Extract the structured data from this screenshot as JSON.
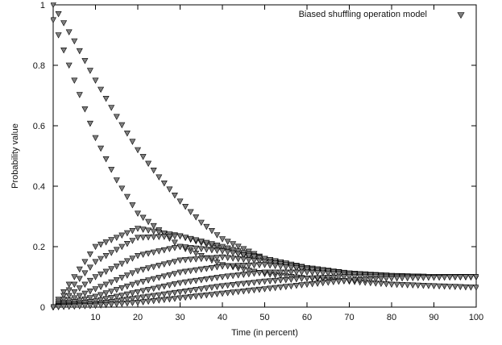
{
  "chart_data": {
    "type": "scatter",
    "title": "",
    "xlabel": "Time (in percent)",
    "ylabel": "Probability value",
    "xlim": [
      0,
      100
    ],
    "ylim": [
      0,
      1
    ],
    "x_ticks": [
      10,
      20,
      30,
      40,
      50,
      60,
      70,
      80,
      90,
      100
    ],
    "y_ticks": [
      0,
      0.2,
      0.4,
      0.6,
      0.8,
      1
    ],
    "grid": false,
    "legend_position": "top-right",
    "marker": "downward-triangle",
    "marker_color": "#7f7f7f",
    "steps": 81,
    "series": [
      {
        "name": "Biased shuffling operation model",
        "curves": [
          {
            "x": [
              0,
              5,
              10,
              15,
              20,
              25,
              30,
              35,
              40,
              50,
              60,
              70,
              80,
              90,
              100
            ],
            "y": [
              1,
              0.88,
              0.75,
              0.63,
              0.52,
              0.43,
              0.35,
              0.28,
              0.225,
              0.16,
              0.125,
              0.11,
              0.102,
              0.1,
              0.1
            ]
          },
          {
            "x": [
              0,
              5,
              10,
              15,
              20,
              30,
              40,
              50,
              60,
              70,
              80,
              90,
              100
            ],
            "y": [
              0.95,
              0.75,
              0.56,
              0.42,
              0.31,
              0.2,
              0.14,
              0.11,
              0.095,
              0.085,
              0.075,
              0.07,
              0.065
            ]
          },
          {
            "x": [
              0,
              10,
              20,
              30,
              40,
              50,
              60,
              70,
              80,
              90,
              100
            ],
            "y": [
              0,
              0.2,
              0.26,
              0.235,
              0.19,
              0.15,
              0.12,
              0.105,
              0.1,
              0.1,
              0.1
            ]
          },
          {
            "x": [
              0,
              10,
              20,
              30,
              40,
              50,
              60,
              70,
              80,
              90,
              100
            ],
            "y": [
              0,
              0.15,
              0.23,
              0.235,
              0.2,
              0.16,
              0.125,
              0.11,
              0.1,
              0.1,
              0.1
            ]
          },
          {
            "x": [
              0,
              10,
              20,
              30,
              40,
              50,
              60,
              70,
              80,
              90,
              100
            ],
            "y": [
              0,
              0.1,
              0.17,
              0.2,
              0.185,
              0.16,
              0.13,
              0.11,
              0.1,
              0.1,
              0.1
            ]
          },
          {
            "x": [
              0,
              10,
              20,
              30,
              40,
              50,
              60,
              70,
              80,
              90,
              100
            ],
            "y": [
              0,
              0.06,
              0.12,
              0.155,
              0.165,
              0.15,
              0.13,
              0.112,
              0.102,
              0.1,
              0.1
            ]
          },
          {
            "x": [
              0,
              10,
              20,
              30,
              40,
              50,
              60,
              70,
              80,
              90,
              100
            ],
            "y": [
              0,
              0.035,
              0.08,
              0.115,
              0.135,
              0.14,
              0.125,
              0.112,
              0.104,
              0.1,
              0.1
            ]
          },
          {
            "x": [
              0,
              10,
              20,
              30,
              40,
              50,
              60,
              70,
              80,
              90,
              100
            ],
            "y": [
              0,
              0.02,
              0.05,
              0.08,
              0.1,
              0.115,
              0.115,
              0.108,
              0.103,
              0.1,
              0.1
            ]
          },
          {
            "x": [
              0,
              10,
              20,
              30,
              40,
              50,
              60,
              70,
              80,
              90,
              100
            ],
            "y": [
              0,
              0.01,
              0.03,
              0.05,
              0.07,
              0.085,
              0.095,
              0.1,
              0.1,
              0.1,
              0.1
            ]
          },
          {
            "x": [
              0,
              10,
              20,
              30,
              40,
              50,
              60,
              70,
              80,
              90,
              100
            ],
            "y": [
              0,
              0.005,
              0.015,
              0.03,
              0.045,
              0.06,
              0.075,
              0.088,
              0.095,
              0.098,
              0.1
            ]
          }
        ]
      }
    ]
  }
}
